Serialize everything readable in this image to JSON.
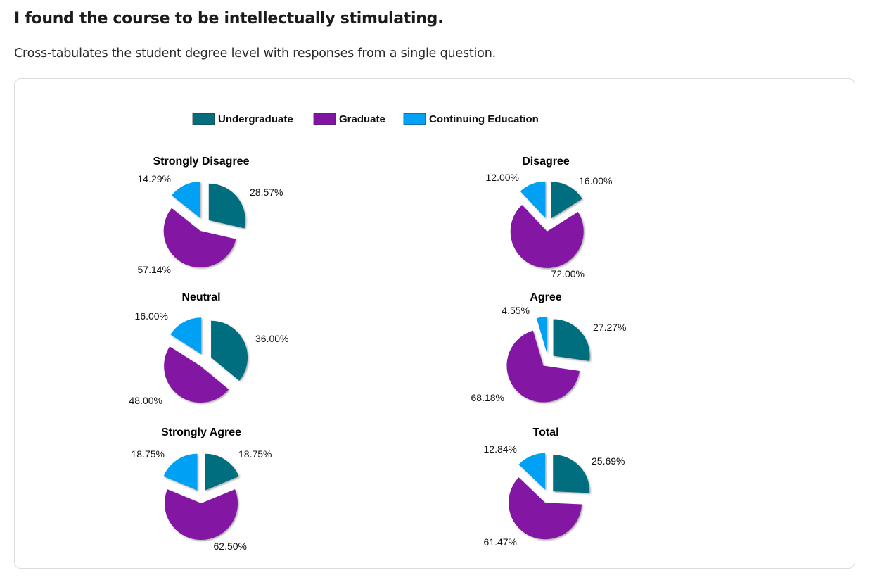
{
  "page": {
    "title": "I found the course to be intellectually stimulating.",
    "subtitle": "Cross-tabulates the student degree level with responses from a single question."
  },
  "colors": {
    "undergraduate": "#046e7f",
    "graduate": "#8314a3",
    "continuing_education": "#04a1f5"
  },
  "chart_data": {
    "type": "pie",
    "legend": {
      "placement": "top",
      "entries": [
        {
          "name": "Undergraduate",
          "color": "#046e7f"
        },
        {
          "name": "Graduate",
          "color": "#8314a3"
        },
        {
          "name": "Continuing Education",
          "color": "#04a1f5"
        }
      ]
    },
    "categories": [
      "Undergraduate",
      "Graduate",
      "Continuing Education"
    ],
    "pies": [
      {
        "title": "Strongly Disagree",
        "values": [
          28.57,
          57.14,
          14.29
        ],
        "labels": [
          "28.57%",
          "57.14%",
          "14.29%"
        ]
      },
      {
        "title": "Disagree",
        "values": [
          16.0,
          72.0,
          12.0
        ],
        "labels": [
          "16.00%",
          "72.00%",
          "12.00%"
        ]
      },
      {
        "title": "Neutral",
        "values": [
          36.0,
          48.0,
          16.0
        ],
        "labels": [
          "36.00%",
          "48.00%",
          "16.00%"
        ]
      },
      {
        "title": "Agree",
        "values": [
          27.27,
          68.18,
          4.55
        ],
        "labels": [
          "27.27%",
          "68.18%",
          "4.55%"
        ]
      },
      {
        "title": "Strongly Agree",
        "values": [
          18.75,
          62.5,
          18.75
        ],
        "labels": [
          "18.75%",
          "62.50%",
          "18.75%"
        ]
      },
      {
        "title": "Total",
        "values": [
          25.69,
          61.47,
          12.84
        ],
        "labels": [
          "25.69%",
          "61.47%",
          "12.84%"
        ]
      }
    ]
  }
}
